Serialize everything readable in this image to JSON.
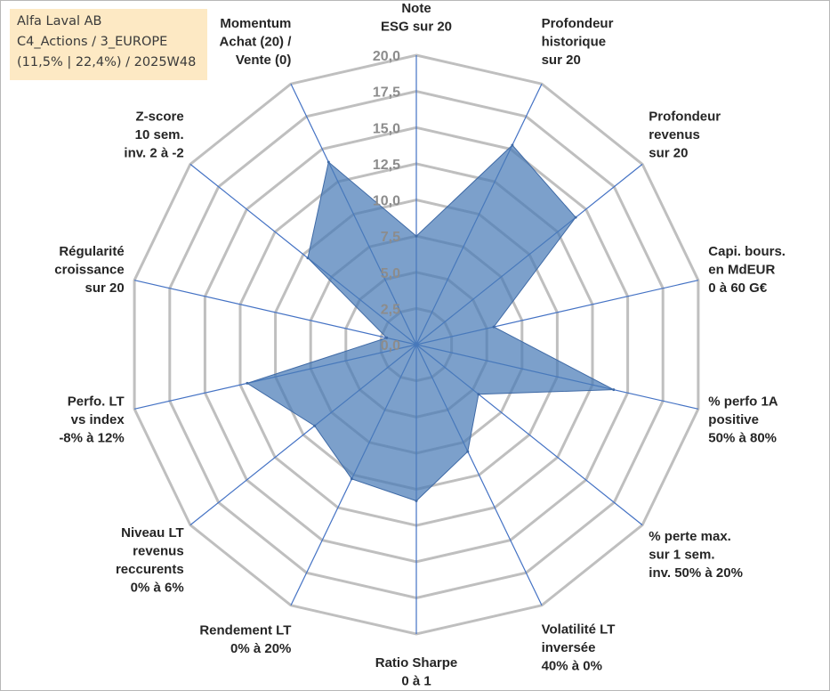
{
  "info": {
    "line1": "Alfa Laval AB",
    "line2": "C4_Actions / 3_EUROPE",
    "line3": "(11,5% | 22,4%) / 2025W48",
    "bg_color": "#fde9c4"
  },
  "chart_data": {
    "type": "radar",
    "title": "",
    "rmin": 0,
    "rmax": 20,
    "ticks": [
      "0,0",
      "2,5",
      "5,0",
      "7,5",
      "10,0",
      "12,5",
      "15,0",
      "17,5",
      "20,0"
    ],
    "tick_values": [
      0,
      2.5,
      5,
      7.5,
      10,
      12.5,
      15,
      17.5,
      20
    ],
    "axes": [
      {
        "label": [
          "Note",
          "ESG sur 20"
        ],
        "value": 7.5
      },
      {
        "label": [
          "Profondeur",
          "historique",
          "sur 20"
        ],
        "value": 15.3
      },
      {
        "label": [
          "Profondeur",
          "revenus",
          "sur 20"
        ],
        "value": 14.1
      },
      {
        "label": [
          "Capi. bours.",
          "en MdEUR",
          "0 à 60 G€"
        ],
        "value": 5.5
      },
      {
        "label": [
          "% perfo 1A",
          "positive",
          "50% à 80%"
        ],
        "value": 14.0
      },
      {
        "label": [
          "% perte max.",
          "sur 1 sem.",
          "inv. 50% à 20%"
        ],
        "value": 5.5
      },
      {
        "label": [
          "Volatilité LT",
          "inversée",
          "40% à 0%"
        ],
        "value": 8.2
      },
      {
        "label": [
          "Ratio Sharpe",
          "0 à 1"
        ],
        "value": 10.8
      },
      {
        "label": [
          "Rendement LT",
          "0% à 20%"
        ],
        "value": 10.3
      },
      {
        "label": [
          "Niveau LT",
          "revenus",
          "reccurents",
          "0% à 6%"
        ],
        "value": 9.0
      },
      {
        "label": [
          "Perfo. LT",
          "vs index",
          "-8% à 12%"
        ],
        "value": 12.0
      },
      {
        "label": [
          "Régularité",
          "croissance",
          "sur 20"
        ],
        "value": 2.1
      },
      {
        "label": [
          "Z-score",
          "10 sem.",
          "inv. 2 à -2"
        ],
        "value": 9.6
      },
      {
        "label": [
          "Momentum",
          "Achat (20) /",
          "Vente (0)"
        ],
        "value": 14.0
      }
    ],
    "series_color": "#4a7bb7",
    "grid_color": "#bfbfbf",
    "axis_color": "#4472c4"
  }
}
